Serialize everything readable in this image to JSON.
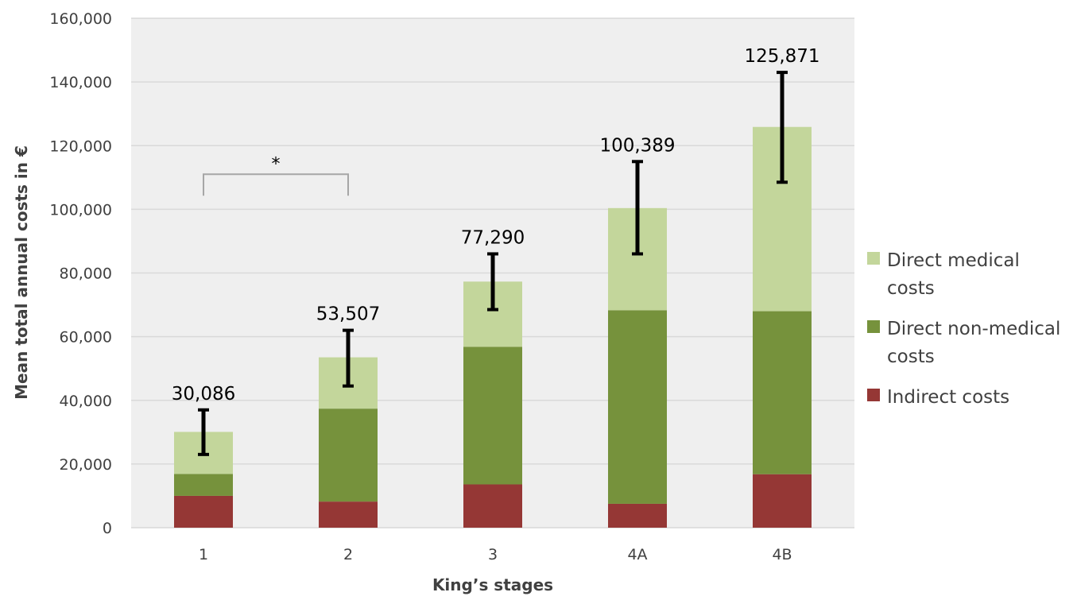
{
  "chart_data": {
    "type": "bar",
    "stacked": true,
    "xlabel": "King’s stages",
    "ylabel": "Mean total annual costs in €",
    "ylim": [
      0,
      160000
    ],
    "y_ticks": [
      "0",
      "20,000",
      "40,000",
      "60,000",
      "80,000",
      "100,000",
      "120,000",
      "140,000",
      "160,000"
    ],
    "grid": true,
    "legend_position": "right",
    "categories": [
      "1",
      "2",
      "3",
      "4A",
      "4B"
    ],
    "series": [
      {
        "name": "Indirect costs",
        "color": "#953735",
        "values": [
          10000,
          8200,
          13600,
          7500,
          16800
        ]
      },
      {
        "name": "Direct non-medical costs",
        "color": "#76923C",
        "values": [
          6900,
          29200,
          43200,
          60800,
          51200
        ]
      },
      {
        "name": "Direct medical costs",
        "color": "#C3D69B",
        "values": [
          13186,
          16107,
          20490,
          32089,
          57871
        ]
      }
    ],
    "legend": [
      {
        "lines": [
          "Direct medical",
          "costs"
        ],
        "color": "#C3D69B"
      },
      {
        "lines": [
          "Direct non-medical",
          "costs"
        ],
        "color": "#76923C"
      },
      {
        "lines": [
          "Indirect costs"
        ],
        "color": "#953735"
      }
    ],
    "totals": [
      30086,
      53507,
      77290,
      100389,
      125871
    ],
    "total_labels": [
      "30,086",
      "53,507",
      "77,290",
      "100,389",
      "125,871"
    ],
    "error_bars": [
      {
        "low": 23000,
        "high": 37000
      },
      {
        "low": 44500,
        "high": 62000
      },
      {
        "low": 68500,
        "high": 86000
      },
      {
        "low": 86000,
        "high": 115000
      },
      {
        "low": 108500,
        "high": 143000
      }
    ],
    "annotations": [
      {
        "type": "significance-bracket",
        "text": "*",
        "from_category": "1",
        "to_category": "2",
        "y": 111000
      }
    ]
  }
}
